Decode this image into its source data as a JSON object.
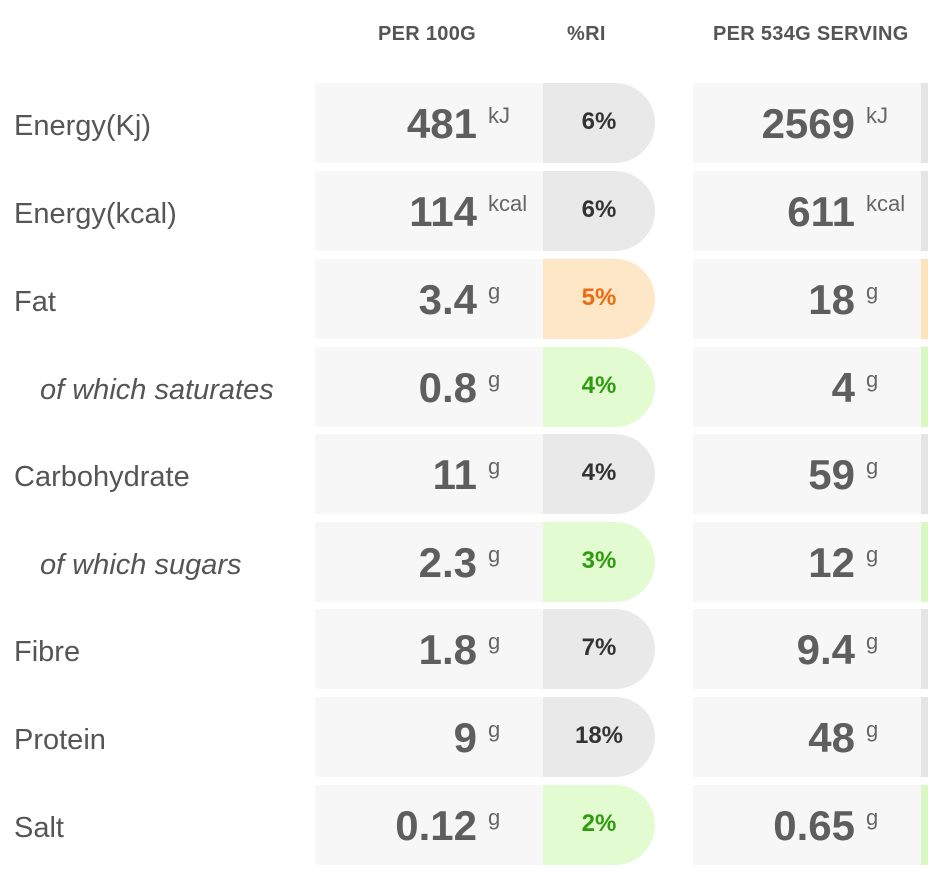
{
  "headers": {
    "per_100g": "PER 100G",
    "ri": "%RI",
    "per_serving": "PER 534G SERVING"
  },
  "colors": {
    "grey_badge": "#e9e9e9",
    "amber_badge": "#fde7c6",
    "amber_text": "#f26a0f",
    "green_badge": "#e3fbd0",
    "green_text": "#2f9b10"
  },
  "rows": [
    {
      "label": "Energy(Kj)",
      "per_100g": "481",
      "unit": "kJ",
      "ri": "6%",
      "ri_level": "grey",
      "per_serving": "2569",
      "sub": false
    },
    {
      "label": "Energy(kcal)",
      "per_100g": "114",
      "unit": "kcal",
      "ri": "6%",
      "ri_level": "grey",
      "per_serving": "611",
      "sub": false
    },
    {
      "label": "Fat",
      "per_100g": "3.4",
      "unit": "g",
      "ri": "5%",
      "ri_level": "amber",
      "per_serving": "18",
      "sub": false
    },
    {
      "label": "of which saturates",
      "per_100g": "0.8",
      "unit": "g",
      "ri": "4%",
      "ri_level": "green",
      "per_serving": "4",
      "sub": true
    },
    {
      "label": "Carbohydrate",
      "per_100g": "11",
      "unit": "g",
      "ri": "4%",
      "ri_level": "grey",
      "per_serving": "59",
      "sub": false
    },
    {
      "label": "of which sugars",
      "per_100g": "2.3",
      "unit": "g",
      "ri": "3%",
      "ri_level": "green",
      "per_serving": "12",
      "sub": true
    },
    {
      "label": "Fibre",
      "per_100g": "1.8",
      "unit": "g",
      "ri": "7%",
      "ri_level": "grey",
      "per_serving": "9.4",
      "sub": false
    },
    {
      "label": "Protein",
      "per_100g": "9",
      "unit": "g",
      "ri": "18%",
      "ri_level": "grey",
      "per_serving": "48",
      "sub": false
    },
    {
      "label": "Salt",
      "per_100g": "0.12",
      "unit": "g",
      "ri": "2%",
      "ri_level": "green",
      "per_serving": "0.65",
      "sub": false
    }
  ]
}
